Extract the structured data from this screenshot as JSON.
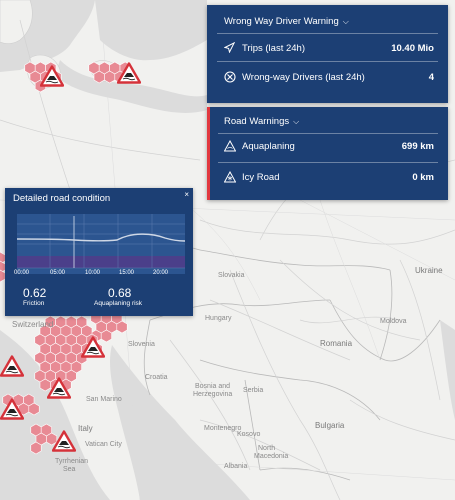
{
  "wrong_way": {
    "title": "Wrong Way Driver Warning",
    "trips_label": "Trips (last 24h)",
    "trips_value": "10.40 Mio",
    "drivers_label": "Wrong-way Drivers (last 24h)",
    "drivers_value": "4"
  },
  "road_warnings": {
    "title": "Road Warnings",
    "aquaplaning_label": "Aquaplaning",
    "aquaplaning_value": "699 km",
    "icy_label": "Icy Road",
    "icy_value": "0 km"
  },
  "road_condition": {
    "title": "Detailed road condition",
    "close": "×",
    "times": [
      "00:00",
      "05:00",
      "10:00",
      "15:00",
      "20:00"
    ],
    "friction_value": "0.62",
    "friction_label": "Friction",
    "aqua_value": "0.68",
    "aqua_label": "Aquaplaning risk"
  },
  "map": {
    "labels": {
      "slovakia": "Slovakia",
      "ukraine": "Ukraine",
      "hungary": "Hungary",
      "moldova": "Moldova",
      "switzerland": "Switzerland",
      "slovenia": "Slovenia",
      "romania": "Romania",
      "croatia": "Croatia",
      "serbia": "Serbia",
      "bosnia": "Bosnia and",
      "herzegovina": "Herzegovina",
      "san_marino": "San Marino",
      "montenegro": "Montenegro",
      "kosovo": "Kosovo",
      "bulgaria": "Bulgaria",
      "north": "North",
      "macedonia": "Macedonia",
      "albania": "Albania",
      "italy": "Italy",
      "vatican": "Vatican City",
      "tyrrhenian1": "Tyrrhenian",
      "tyrrhenian2": "Sea"
    }
  },
  "colors": {
    "panel": "#1c3f74",
    "accent": "#e2383f",
    "hex": "#e88a94"
  }
}
